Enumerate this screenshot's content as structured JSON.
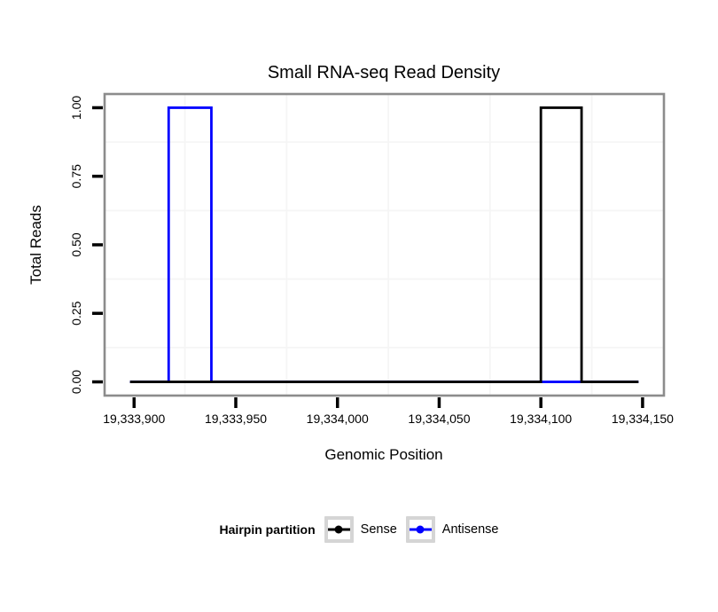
{
  "title": "Small RNA-seq Read Density",
  "chart_data": {
    "type": "line",
    "subtype": "step-density",
    "title": "Small RNA-seq Read Density",
    "xlabel": "Genomic Position",
    "ylabel": "Total Reads",
    "xlim": [
      19333885.5,
      19334160.5
    ],
    "ylim": [
      -0.05,
      1.05
    ],
    "grid": "minor-only",
    "legend_position": "bottom",
    "x_ticks": [
      {
        "value": 19333900,
        "label": "19,333,900"
      },
      {
        "value": 19333950,
        "label": "19,333,950"
      },
      {
        "value": 19334000,
        "label": "19,334,000"
      },
      {
        "value": 19334050,
        "label": "19,334,050"
      },
      {
        "value": 19334100,
        "label": "19,334,100"
      },
      {
        "value": 19334150,
        "label": "19,334,150"
      }
    ],
    "y_ticks": [
      {
        "value": 0.0,
        "label": "0.00"
      },
      {
        "value": 0.25,
        "label": "0.25"
      },
      {
        "value": 0.5,
        "label": "0.50"
      },
      {
        "value": 0.75,
        "label": "0.75"
      },
      {
        "value": 1.0,
        "label": "1.00"
      }
    ],
    "x_minor_gridlines": [
      19333925,
      19333975,
      19334025,
      19334075,
      19334125
    ],
    "y_minor_gridlines": [
      0.125,
      0.375,
      0.625,
      0.875
    ],
    "series": [
      {
        "name": "Sense",
        "color": "#000000",
        "points": [
          [
            19333898,
            0
          ],
          [
            19334100,
            0
          ],
          [
            19334100,
            1
          ],
          [
            19334120,
            1
          ],
          [
            19334120,
            0
          ],
          [
            19334148,
            0
          ]
        ]
      },
      {
        "name": "Antisense",
        "color": "#0000ff",
        "points": [
          [
            19333898,
            0
          ],
          [
            19333917,
            0
          ],
          [
            19333917,
            1
          ],
          [
            19333938,
            1
          ],
          [
            19333938,
            0
          ],
          [
            19334148,
            0
          ]
        ]
      }
    ]
  },
  "legend": {
    "title": "Hairpin partition",
    "items": [
      {
        "label": "Sense",
        "color": "#000000"
      },
      {
        "label": "Antisense",
        "color": "#0000ff"
      }
    ]
  },
  "colors": {
    "background": "#ffffff",
    "panel_border": "#8c8c8c",
    "minor_grid": "#f5f5f5",
    "tick": "#000000",
    "text": "#000000",
    "legend_key_border": "#d5d5d5"
  }
}
